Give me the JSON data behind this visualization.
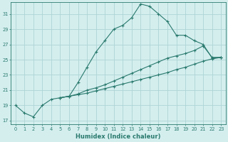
{
  "xlabel": "Humidex (Indice chaleur)",
  "bg_color": "#d4eeee",
  "grid_color": "#aed4d4",
  "line_color": "#2a7a6e",
  "xlim": [
    -0.5,
    23.5
  ],
  "ylim": [
    16.5,
    32.5
  ],
  "yticks": [
    17,
    19,
    21,
    23,
    25,
    27,
    29,
    31
  ],
  "xticks": [
    0,
    1,
    2,
    3,
    4,
    5,
    6,
    7,
    8,
    9,
    10,
    11,
    12,
    13,
    14,
    15,
    16,
    17,
    18,
    19,
    20,
    21,
    22,
    23
  ],
  "line1_x": [
    0,
    1,
    2,
    3,
    4,
    5,
    6,
    7,
    8,
    9,
    10,
    11,
    12,
    13,
    14,
    15,
    16,
    17,
    18,
    19,
    20,
    21,
    22,
    23
  ],
  "line1_y": [
    19.0,
    18.0,
    17.5,
    19.0,
    19.8,
    20.0,
    20.2,
    22.0,
    24.0,
    26.0,
    27.5,
    29.0,
    29.5,
    30.5,
    32.3,
    32.0,
    31.0,
    30.0,
    28.2,
    28.2,
    27.5,
    27.0,
    25.2,
    25.3
  ],
  "line2_x": [
    5,
    6,
    7,
    8,
    9,
    10,
    11,
    12,
    13,
    14,
    15,
    16,
    17,
    18,
    19,
    20,
    21,
    22,
    23
  ],
  "line2_y": [
    20.0,
    20.2,
    20.5,
    21.0,
    21.3,
    21.7,
    22.2,
    22.7,
    23.2,
    23.7,
    24.2,
    24.7,
    25.2,
    25.5,
    25.8,
    26.2,
    26.8,
    25.3,
    25.3
  ],
  "line3_x": [
    5,
    6,
    7,
    8,
    9,
    10,
    11,
    12,
    13,
    14,
    15,
    16,
    17,
    18,
    19,
    20,
    21,
    22,
    23
  ],
  "line3_y": [
    20.0,
    20.2,
    20.4,
    20.6,
    20.9,
    21.2,
    21.5,
    21.8,
    22.1,
    22.4,
    22.7,
    23.0,
    23.3,
    23.7,
    24.0,
    24.4,
    24.8,
    25.1,
    25.3
  ]
}
